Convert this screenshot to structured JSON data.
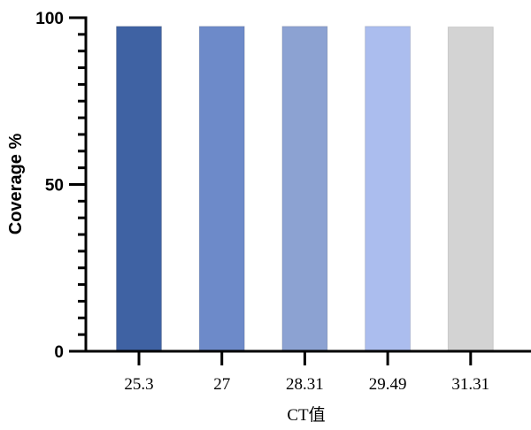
{
  "chart_data": {
    "type": "bar",
    "title": "",
    "xlabel": "CT值",
    "ylabel": "Coverage %",
    "categories": [
      "25.3",
      "27",
      "28.31",
      "29.49",
      "31.31"
    ],
    "values": [
      97.4,
      97.4,
      97.4,
      97.4,
      97.2
    ],
    "colors": [
      "#3f62a3",
      "#6d8ac9",
      "#8ca2d2",
      "#abbdee",
      "#d3d3d3"
    ],
    "ylim": [
      0,
      100
    ],
    "yticks": [
      "0",
      "50",
      "100"
    ],
    "minor_tick_step": 5,
    "grid": false,
    "legend": "none"
  }
}
